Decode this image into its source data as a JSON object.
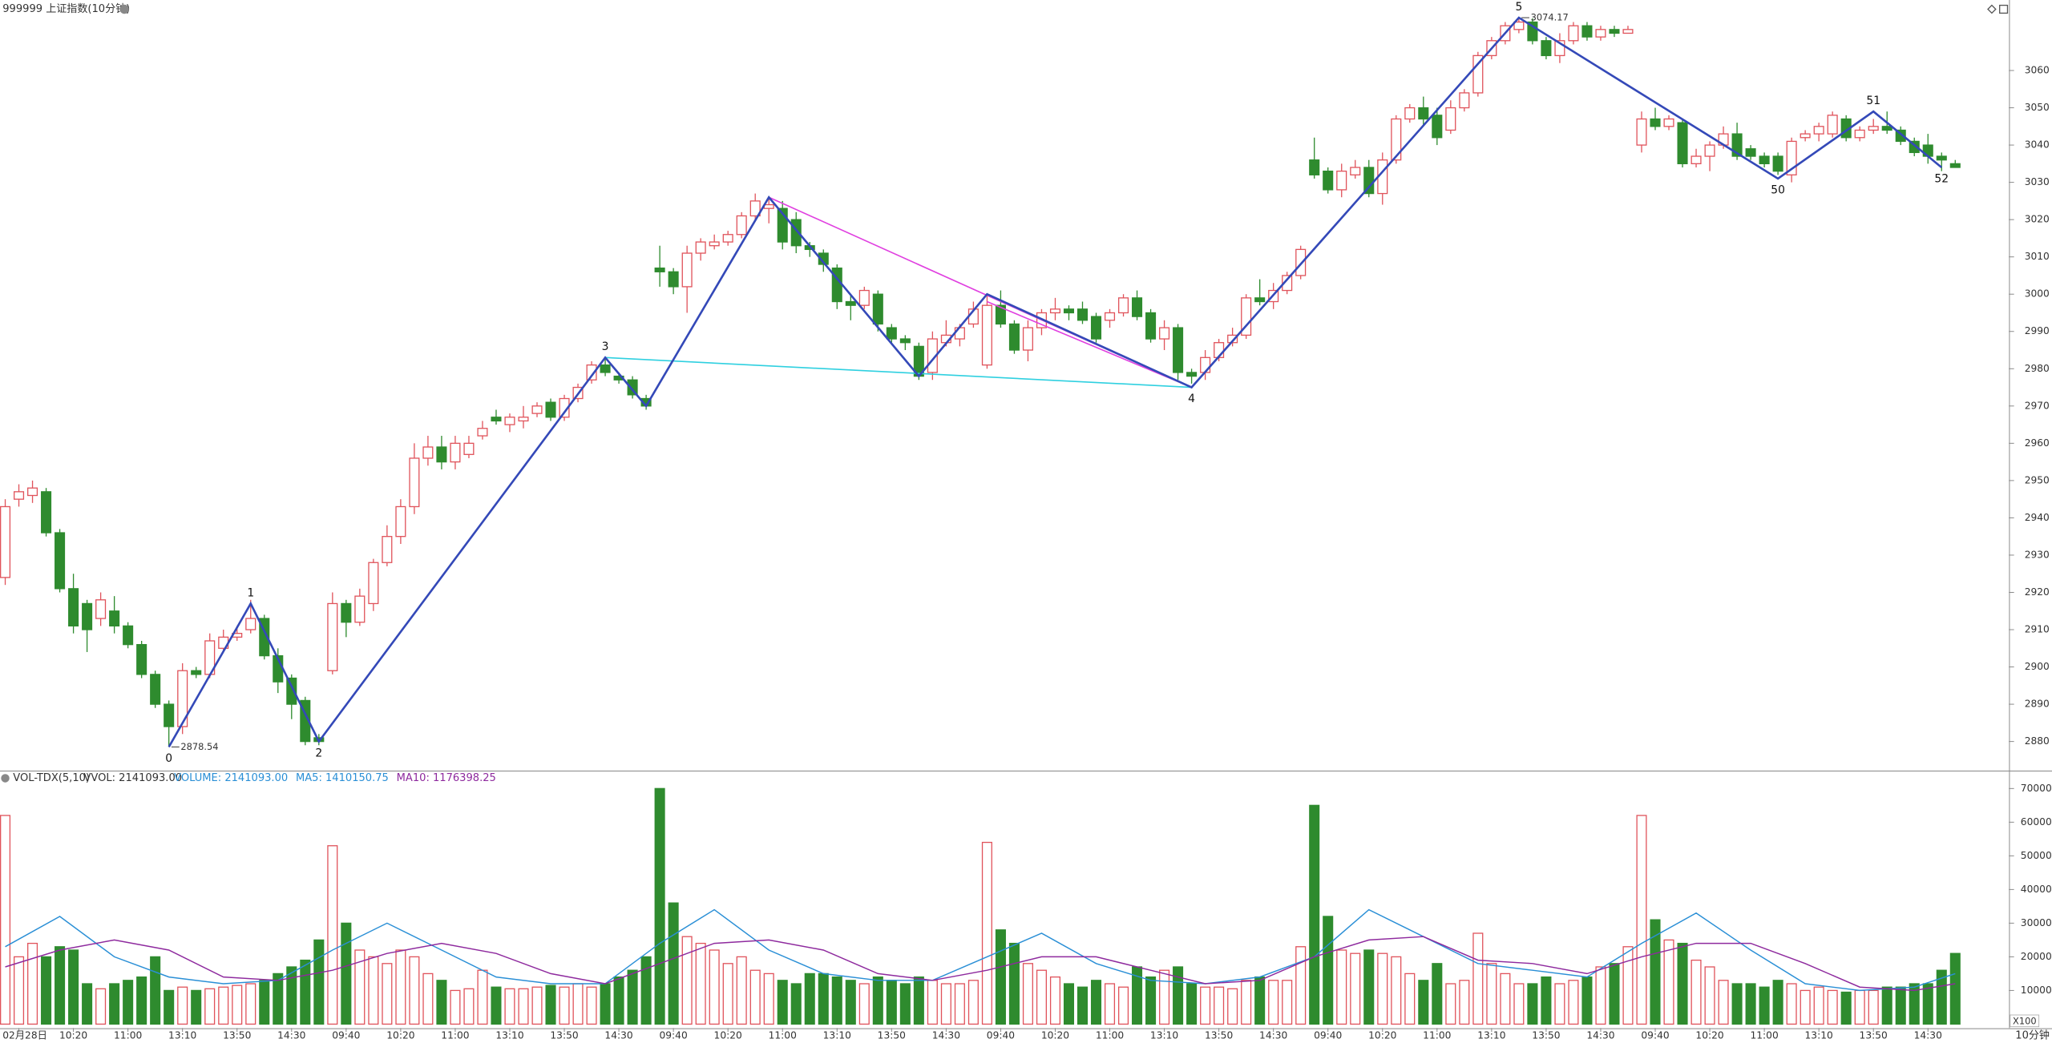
{
  "header": {
    "title": "999999 上证指数(10分钟)"
  },
  "chart_data": [
    {
      "type": "candlestick",
      "ylim": [
        2872.6,
        3078.9
      ],
      "yticks": [
        2880,
        2890,
        2900,
        2910,
        2920,
        2930,
        2940,
        2950,
        2960,
        2970,
        2980,
        2990,
        3000,
        3010,
        3020,
        3030,
        3040,
        3050,
        3060
      ],
      "up_color": "#e0535b",
      "down_color": "#2e8b2e",
      "open": [
        2924,
        2945,
        2946,
        2947,
        2936,
        2921,
        2917,
        2913,
        2915,
        2911,
        2906,
        2898,
        2890,
        2884,
        2899,
        2898,
        2905,
        2908,
        2910,
        2913,
        2903,
        2897,
        2891,
        2881,
        2899,
        2917,
        2912,
        2917,
        2928,
        2935,
        2943,
        2956,
        2959,
        2955,
        2957,
        2962,
        2967,
        2965,
        2966,
        2968,
        2971,
        2967,
        2972,
        2977,
        2981,
        2978,
        2977,
        2972,
        3007,
        3006,
        3002,
        3011,
        3013,
        3014,
        3016,
        3021,
        3023,
        3023,
        3020,
        3013,
        3011,
        3007,
        2998,
        2997,
        3000,
        2991,
        2988,
        2986,
        2979,
        2987,
        2988,
        2992,
        2981,
        2997,
        2992,
        2985,
        2991,
        2995,
        2996,
        2996,
        2994,
        2993,
        2995,
        2999,
        2995,
        2988,
        2991,
        2979,
        2979,
        2983,
        2987,
        2989,
        2999,
        2998,
        3001,
        3005,
        3036,
        3033,
        3028,
        3032,
        3034,
        3027,
        3036,
        3047,
        3050,
        3048,
        3044,
        3050,
        3054,
        3064,
        3068,
        3071,
        3073,
        3068,
        3064,
        3068,
        3072,
        3069,
        3071,
        3070,
        3040,
        3047,
        3045,
        3046,
        3035,
        3037,
        3040,
        3043,
        3039,
        3037,
        3037,
        3032,
        3042,
        3043,
        3043,
        3047,
        3042,
        3044,
        3045,
        3044,
        3041,
        3040,
        3037,
        3035
      ],
      "high": [
        2945,
        2949,
        2950,
        2948,
        2937,
        2925,
        2918,
        2920,
        2919,
        2912,
        2907,
        2899,
        2891,
        2901,
        2900,
        2909,
        2910,
        2911,
        2918,
        2914,
        2905,
        2898,
        2892,
        2882,
        2920,
        2918,
        2921,
        2929,
        2938,
        2945,
        2960,
        2962,
        2962,
        2962,
        2962,
        2966,
        2969,
        2968,
        2970,
        2971,
        2972,
        2973,
        2976,
        2982,
        2983,
        2979,
        2978,
        2973,
        3013,
        3007,
        3013,
        3015,
        3016,
        3017,
        3022,
        3027,
        3026,
        3025,
        3022,
        3014,
        3012,
        3008,
        3000,
        3002,
        3001,
        2992,
        2989,
        2987,
        2990,
        2993,
        2992,
        2998,
        3000,
        3001,
        2993,
        2993,
        2996,
        2999,
        2997,
        2998,
        2995,
        2996,
        3000,
        3001,
        2996,
        2993,
        2992,
        2980,
        2985,
        2988,
        2991,
        3000,
        3004,
        3003,
        3006,
        3013,
        3042,
        3034,
        3035,
        3036,
        3036,
        3038,
        3048,
        3051,
        3053,
        3050,
        3052,
        3055,
        3065,
        3069,
        3073,
        3074.17,
        3074,
        3069,
        3070,
        3073,
        3073,
        3072,
        3072,
        3072,
        3049,
        3050,
        3048,
        3047,
        3039,
        3041,
        3045,
        3046,
        3040,
        3038,
        3038,
        3042,
        3044,
        3046,
        3049,
        3048,
        3045,
        3047,
        3049,
        3045,
        3042,
        3043,
        3038,
        3036
      ],
      "low": [
        2922,
        2943,
        2944,
        2935,
        2920,
        2909,
        2904,
        2911,
        2909,
        2905,
        2897,
        2889,
        2878.54,
        2882,
        2897,
        2897,
        2904,
        2907,
        2909,
        2902,
        2893,
        2886,
        2879,
        2879,
        2898,
        2908,
        2911,
        2915,
        2927,
        2933,
        2941,
        2954,
        2953,
        2953,
        2956,
        2961,
        2965,
        2963,
        2964,
        2967,
        2966,
        2966,
        2971,
        2976,
        2978,
        2976,
        2972,
        2969,
        3002,
        3000,
        2995,
        3009,
        3012,
        3013,
        3015,
        3020,
        3019,
        3012,
        3011,
        3010,
        3006,
        2996,
        2993,
        2996,
        2990,
        2987,
        2985,
        2977,
        2977,
        2986,
        2986,
        2991,
        2980,
        2991,
        2984,
        2982,
        2989,
        2993,
        2993,
        2992,
        2987,
        2991,
        2994,
        2993,
        2987,
        2985,
        2977,
        2976,
        2977,
        2982,
        2986,
        2988,
        2997,
        2996,
        3000,
        3004,
        3031,
        3027,
        3026,
        3031,
        3026,
        3024,
        3035,
        3046,
        3045,
        3040,
        3043,
        3049,
        3053,
        3063,
        3067,
        3070,
        3067,
        3063,
        3062,
        3067,
        3068,
        3068,
        3069,
        3070,
        3038,
        3044,
        3044,
        3034,
        3034,
        3033,
        3039,
        3036,
        3036,
        3034,
        3032,
        3030,
        3041,
        3041,
        3042,
        3041,
        3041,
        3043,
        3043,
        3040,
        3037,
        3035,
        3033,
        3034
      ],
      "close": [
        2943,
        2947,
        2948,
        2936,
        2921,
        2911,
        2910,
        2918,
        2911,
        2906,
        2898,
        2890,
        2884,
        2899,
        2898,
        2907,
        2908,
        2909,
        2913,
        2903,
        2896,
        2890,
        2880,
        2880,
        2917,
        2912,
        2919,
        2928,
        2935,
        2943,
        2956,
        2959,
        2955,
        2960,
        2960,
        2964,
        2966,
        2967,
        2967,
        2970,
        2967,
        2972,
        2975,
        2981,
        2979,
        2977,
        2973,
        2970,
        3006,
        3002,
        3011,
        3014,
        3014,
        3016,
        3021,
        3025,
        3024,
        3014,
        3013,
        3012,
        3008,
        2998,
        2997,
        3001,
        2992,
        2988,
        2987,
        2978,
        2988,
        2989,
        2991,
        2996,
        2997,
        2992,
        2985,
        2991,
        2995,
        2996,
        2995,
        2993,
        2988,
        2995,
        2999,
        2994,
        2988,
        2991,
        2979,
        2978,
        2983,
        2987,
        2989,
        2999,
        2998,
        3001,
        3005,
        3012,
        3032,
        3028,
        3033,
        3034,
        3027,
        3036,
        3047,
        3050,
        3047,
        3042,
        3050,
        3054,
        3064,
        3068,
        3072,
        3073,
        3068,
        3064,
        3068,
        3072,
        3069,
        3071,
        3070,
        3071,
        3047,
        3045,
        3047,
        3035,
        3037,
        3040,
        3043,
        3037,
        3037,
        3035,
        3033,
        3041,
        3043,
        3045,
        3048,
        3042,
        3044,
        3045,
        3044,
        3041,
        3038,
        3037,
        3036,
        3034
      ],
      "extreme_labels": [
        {
          "index": 12,
          "kind": "low"
        },
        {
          "index": 111,
          "kind": "high"
        }
      ],
      "wave_color": "#3449b8",
      "waves": [
        {
          "index": 12,
          "price": 2878.54,
          "label": "0"
        },
        {
          "index": 18,
          "price": 2917,
          "label": "1"
        },
        {
          "index": 23,
          "price": 2880,
          "label": "2"
        },
        {
          "index": 44,
          "price": 2983,
          "label": "3"
        },
        {
          "index": 47,
          "price": 2970,
          "label": null
        },
        {
          "index": 56,
          "price": 3026,
          "label": null
        },
        {
          "index": 67,
          "price": 2978,
          "label": null
        },
        {
          "index": 72,
          "price": 3000,
          "label": null
        },
        {
          "index": 87,
          "price": 2975,
          "label": "4"
        },
        {
          "index": 111,
          "price": 3074.17,
          "label": "5"
        },
        {
          "index": 130,
          "price": 3031,
          "label": "50"
        },
        {
          "index": 137,
          "price": 3049,
          "label": "51"
        },
        {
          "index": 142,
          "price": 3034,
          "label": "52"
        }
      ],
      "trendlines": [
        {
          "color": "#e040e0",
          "points": [
            [
              56,
              3026
            ],
            [
              87,
              2975
            ]
          ]
        },
        {
          "color": "#e040e0",
          "points": [
            [
              72,
              2998
            ],
            [
              87,
              2975
            ]
          ]
        },
        {
          "color": "#2fd0e0",
          "points": [
            [
              44,
              2983
            ],
            [
              87,
              2975
            ]
          ]
        }
      ]
    },
    {
      "type": "bar",
      "title": "VOL-TDX(5,10)",
      "vvol": "VVOL: 2141093.00",
      "legend": [
        {
          "text": "VOLUME: 2141093.00",
          "color": "#2a8fd6"
        },
        {
          "text": "MA5: 1410150.75",
          "color": "#2a8fd6"
        },
        {
          "text": "MA10: 1176398.25",
          "color": "#8e2a9e"
        }
      ],
      "ylim": [
        0,
        75000
      ],
      "yticks": [
        10000,
        20000,
        30000,
        40000,
        50000,
        60000,
        70000
      ],
      "unit": "X100",
      "period": "10分钟",
      "categories": [
        null,
        "02月28日",
        null,
        null,
        null,
        "10:20",
        null,
        null,
        null,
        "11:00",
        null,
        null,
        null,
        "13:10",
        null,
        null,
        null,
        "13:50",
        null,
        null,
        null,
        "14:30",
        null,
        null,
        null,
        "09:40",
        null,
        null,
        null,
        "10:20",
        null,
        null,
        null,
        "11:00",
        null,
        null,
        null,
        "13:10",
        null,
        null,
        null,
        "13:50",
        null,
        null,
        null,
        "14:30",
        null,
        null,
        null,
        "09:40",
        null,
        null,
        null,
        "10:20",
        null,
        null,
        null,
        "11:00",
        null,
        null,
        null,
        "13:10",
        null,
        null,
        null,
        "13:50",
        null,
        null,
        null,
        "14:30",
        null,
        null,
        null,
        "09:40",
        null,
        null,
        null,
        "10:20",
        null,
        null,
        null,
        "11:00",
        null,
        null,
        null,
        "13:10",
        null,
        null,
        null,
        "13:50",
        null,
        null,
        null,
        "14:30",
        null,
        null,
        null,
        "09:40",
        null,
        null,
        null,
        "10:20",
        null,
        null,
        null,
        "11:00",
        null,
        null,
        null,
        "13:10",
        null,
        null,
        null,
        "13:50",
        null,
        null,
        null,
        "14:30",
        null,
        null,
        null,
        "09:40",
        null,
        null,
        null,
        "10:20",
        null,
        null,
        null,
        "11:00",
        null,
        null,
        null,
        "13:10",
        null,
        null,
        null,
        "13:50",
        null,
        null,
        null,
        "14:30",
        null,
        null
      ],
      "values": [
        62000,
        20000,
        24000,
        20000,
        23000,
        22000,
        12000,
        10500,
        12000,
        13000,
        14000,
        20000,
        10000,
        11000,
        10000,
        10500,
        11000,
        11500,
        12000,
        13000,
        15000,
        17000,
        19000,
        25000,
        53000,
        30000,
        22000,
        20000,
        18000,
        22000,
        20000,
        15000,
        13000,
        10000,
        10500,
        16000,
        11000,
        10500,
        10500,
        11000,
        11500,
        11000,
        12000,
        11000,
        12000,
        14000,
        16000,
        20000,
        70000,
        36000,
        26000,
        24000,
        22000,
        18000,
        20000,
        16000,
        15000,
        13000,
        12000,
        15000,
        15000,
        14000,
        13000,
        12000,
        14000,
        13000,
        12000,
        14000,
        13000,
        12000,
        12000,
        13000,
        54000,
        28000,
        24000,
        18000,
        16000,
        14000,
        12000,
        11000,
        13000,
        12000,
        11000,
        17000,
        14000,
        16000,
        17000,
        12000,
        11000,
        11000,
        10500,
        13000,
        14000,
        13000,
        13000,
        23000,
        65000,
        32000,
        22000,
        21000,
        22000,
        21000,
        20000,
        15000,
        13000,
        18000,
        12000,
        13000,
        27000,
        18000,
        15000,
        12000,
        12000,
        14000,
        12000,
        13000,
        14000,
        17000,
        18000,
        23000,
        62000,
        31000,
        25000,
        24000,
        19000,
        17000,
        13000,
        12000,
        12000,
        11000,
        13000,
        12000,
        10000,
        11000,
        10000,
        9500,
        10000,
        10000,
        11000,
        11000,
        12000,
        12000,
        16000,
        21000
      ],
      "series": [
        {
          "color": "#2a8fd6",
          "x": [
            0,
            4,
            8,
            12,
            16,
            20,
            24,
            28,
            32,
            36,
            40,
            44,
            48,
            52,
            56,
            60,
            64,
            68,
            72,
            76,
            80,
            84,
            88,
            92,
            96,
            100,
            104,
            108,
            112,
            116,
            120,
            124,
            128,
            132,
            136,
            140,
            143
          ],
          "values": [
            23000,
            32000,
            20000,
            14000,
            12000,
            13000,
            22000,
            30000,
            22000,
            14000,
            12000,
            12000,
            24000,
            34000,
            22000,
            15000,
            13000,
            13000,
            20000,
            27000,
            18000,
            13000,
            12000,
            14000,
            20000,
            34000,
            26000,
            18000,
            16000,
            14000,
            24000,
            33000,
            22000,
            12000,
            10000,
            11000,
            15000
          ]
        },
        {
          "color": "#8e2a9e",
          "x": [
            0,
            4,
            8,
            12,
            16,
            20,
            24,
            28,
            32,
            36,
            40,
            44,
            48,
            52,
            56,
            60,
            64,
            68,
            72,
            76,
            80,
            84,
            88,
            92,
            96,
            100,
            104,
            108,
            112,
            116,
            120,
            124,
            128,
            132,
            136,
            140,
            143
          ],
          "values": [
            17000,
            22000,
            25000,
            22000,
            14000,
            13000,
            16000,
            21000,
            24000,
            21000,
            15000,
            12000,
            18000,
            24000,
            25000,
            22000,
            15000,
            13000,
            16000,
            20000,
            20000,
            16000,
            12000,
            13000,
            20000,
            25000,
            26000,
            19000,
            18000,
            15000,
            20000,
            24000,
            24000,
            18000,
            11000,
            10000,
            12000
          ]
        }
      ]
    }
  ]
}
